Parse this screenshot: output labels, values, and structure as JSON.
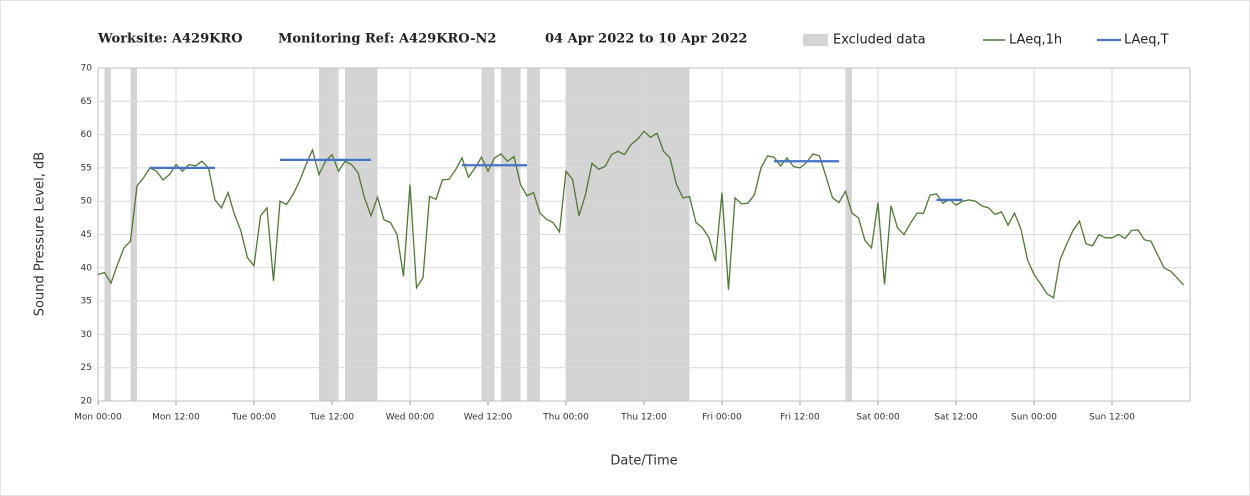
{
  "chart_data": {
    "type": "line",
    "title": [
      "Worksite: A429KRO",
      "Monitoring Ref: A429KRO-N2",
      "04 Apr 2022 to 10 Apr 2022"
    ],
    "ylabel": "Sound Pressure Level, dB",
    "xlabel": "Date/Time",
    "xlim": [
      0,
      168
    ],
    "ylim": [
      20,
      70
    ],
    "yticks": [
      20,
      25,
      30,
      35,
      40,
      45,
      50,
      55,
      60,
      65,
      70
    ],
    "xticks": [
      {
        "value": 0,
        "label": "Mon 00:00"
      },
      {
        "value": 12,
        "label": "Mon 12:00"
      },
      {
        "value": 24,
        "label": "Tue 00:00"
      },
      {
        "value": 36,
        "label": "Tue 12:00"
      },
      {
        "value": 48,
        "label": "Wed 00:00"
      },
      {
        "value": 60,
        "label": "Wed 12:00"
      },
      {
        "value": 72,
        "label": "Thu 00:00"
      },
      {
        "value": 84,
        "label": "Thu 12:00"
      },
      {
        "value": 96,
        "label": "Fri 00:00"
      },
      {
        "value": 108,
        "label": "Fri 12:00"
      },
      {
        "value": 120,
        "label": "Sat 00:00"
      },
      {
        "value": 132,
        "label": "Sat 12:00"
      },
      {
        "value": 144,
        "label": "Sun 00:00"
      },
      {
        "value": 156,
        "label": "Sun 12:00"
      }
    ],
    "grid": true,
    "excluded": {
      "name": "Excluded data",
      "color": "#d4d4d4",
      "ranges": [
        [
          1,
          2
        ],
        [
          5,
          6
        ],
        [
          34,
          37
        ],
        [
          38,
          43
        ],
        [
          59,
          61
        ],
        [
          62,
          65
        ],
        [
          66,
          68
        ],
        [
          72,
          91
        ],
        [
          115,
          116
        ]
      ]
    },
    "x": [
      0,
      1,
      2,
      3,
      4,
      5,
      6,
      7,
      8,
      9,
      10,
      11,
      12,
      13,
      14,
      15,
      16,
      17,
      18,
      19,
      20,
      21,
      22,
      23,
      24,
      25,
      26,
      27,
      28,
      29,
      30,
      31,
      32,
      33,
      34,
      35,
      36,
      37,
      38,
      39,
      40,
      41,
      42,
      43,
      44,
      45,
      46,
      47,
      48,
      49,
      50,
      51,
      52,
      53,
      54,
      55,
      56,
      57,
      58,
      59,
      60,
      61,
      62,
      63,
      64,
      65,
      66,
      67,
      68,
      69,
      70,
      71,
      72,
      73,
      74,
      75,
      76,
      77,
      78,
      79,
      80,
      81,
      82,
      83,
      84,
      85,
      86,
      87,
      88,
      89,
      90,
      91,
      92,
      93,
      94,
      95,
      96,
      97,
      98,
      99,
      100,
      101,
      102,
      103,
      104,
      105,
      106,
      107,
      108,
      109,
      110,
      111,
      112,
      113,
      114,
      115,
      116,
      117,
      118,
      119,
      120,
      121,
      122,
      123,
      124,
      125,
      126,
      127,
      128,
      129,
      130,
      131,
      132,
      133,
      134,
      135,
      136,
      137,
      138,
      139,
      140,
      141,
      142,
      143,
      144,
      145,
      146,
      147,
      148,
      149,
      150,
      151,
      152,
      153,
      154,
      155,
      156,
      157,
      158,
      159,
      160,
      161,
      162,
      163,
      164,
      165,
      166,
      167
    ],
    "series": [
      {
        "name": "LAeq,1h",
        "color": "#4f7a34",
        "values": [
          39,
          39.3,
          37.7,
          40.5,
          43,
          44,
          52.3,
          53.5,
          55,
          54.5,
          53.2,
          54,
          55.5,
          54.5,
          55.5,
          55.3,
          56,
          55,
          50.2,
          49,
          51.3,
          48,
          45.5,
          41.5,
          40.3,
          47.8,
          49,
          38,
          50,
          49.5,
          51,
          53,
          55.5,
          57.7,
          54,
          56,
          57,
          54.5,
          56,
          55.5,
          54.3,
          50.5,
          47.8,
          50.6,
          47.2,
          46.8,
          45,
          38.7,
          52.5,
          37,
          38.5,
          50.7,
          50.3,
          53.2,
          53.3,
          54.7,
          56.5,
          53.6,
          55,
          56.6,
          54.5,
          56.5,
          57.1,
          56,
          56.7,
          52.5,
          50.8,
          51.3,
          48.2,
          47.3,
          46.8,
          45.4,
          54.5,
          53.3,
          47.8,
          51,
          55.7,
          54.8,
          55.2,
          57,
          57.5,
          57,
          58.5,
          59.3,
          60.5,
          59.6,
          60.2,
          57.5,
          56.5,
          52.5,
          50.5,
          50.7,
          46.8,
          46,
          44.5,
          41,
          51.3,
          36.7,
          50.5,
          49.6,
          49.7,
          51,
          55,
          56.8,
          56.6,
          55.3,
          56.5,
          55.2,
          55,
          55.8,
          57.1,
          56.8,
          53.7,
          50.5,
          49.8,
          51.5,
          48.2,
          47.5,
          44.1,
          43,
          49.8,
          37.5,
          49.3,
          46,
          45,
          46.7,
          48.2,
          48.2,
          50.9,
          51.1,
          49.7,
          50.3,
          49.4,
          50,
          50.2,
          50,
          49.3,
          49,
          48,
          48.4,
          46.4,
          48.2,
          45.8,
          41.2,
          39,
          37.6,
          36.1,
          35.5,
          41.2,
          43.5,
          45.6,
          47,
          43.6,
          43.3,
          45,
          44.5,
          44.5,
          45,
          44.4,
          45.6,
          45.7,
          44.2,
          44,
          42,
          40,
          39.5,
          38.5,
          37.4
        ]
      },
      {
        "name": "LAeq,T",
        "color": "#4472c4",
        "segments": [
          {
            "x": [
              8,
              18
            ],
            "value": 55
          },
          {
            "x": [
              28,
              42
            ],
            "value": 56.2
          },
          {
            "x": [
              56,
              66
            ],
            "value": 55.4
          },
          {
            "x": [
              104,
              114
            ],
            "value": 56
          },
          {
            "x": [
              129,
              133
            ],
            "value": 50.2
          }
        ]
      }
    ]
  }
}
